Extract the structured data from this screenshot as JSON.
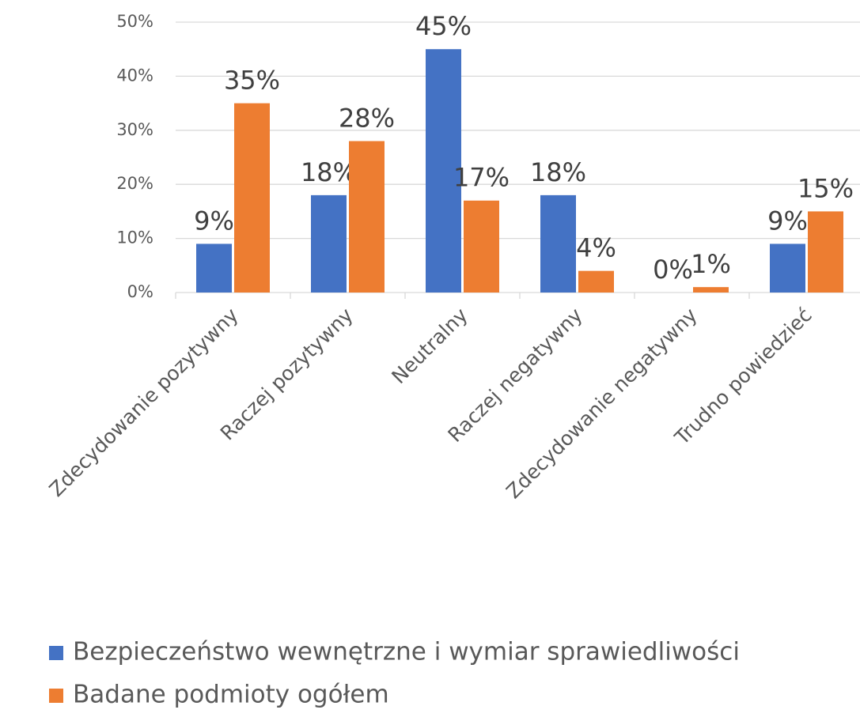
{
  "chart_data": {
    "type": "bar",
    "categories": [
      "Zdecydowanie pozytywny",
      "Raczej pozytywny",
      "Neutralny",
      "Raczej negatywny",
      "Zdecydowanie negatywny",
      "Trudno powiedzieć"
    ],
    "series": [
      {
        "name": "Bezpieczeństwo wewnętrzne i wymiar sprawiedliwości",
        "color": "#4472c4",
        "values": [
          9,
          18,
          45,
          18,
          0,
          9
        ],
        "value_labels": [
          "9%",
          "18%",
          "45%",
          "18%",
          "0%",
          "9%"
        ]
      },
      {
        "name": "Badane podmioty ogółem",
        "color": "#ed7d31",
        "values": [
          35,
          28,
          17,
          4,
          1,
          15
        ],
        "value_labels": [
          "35%",
          "28%",
          "17%",
          "4%",
          "1%",
          "15%"
        ]
      }
    ],
    "ylim": [
      0,
      50
    ],
    "yticks": [
      {
        "value": 0,
        "label": "0%"
      },
      {
        "value": 10,
        "label": "10%"
      },
      {
        "value": 20,
        "label": "20%"
      },
      {
        "value": 30,
        "label": "30%"
      },
      {
        "value": 40,
        "label": "40%"
      },
      {
        "value": 50,
        "label": "50%"
      }
    ],
    "grid": true,
    "legend": "bottom"
  }
}
